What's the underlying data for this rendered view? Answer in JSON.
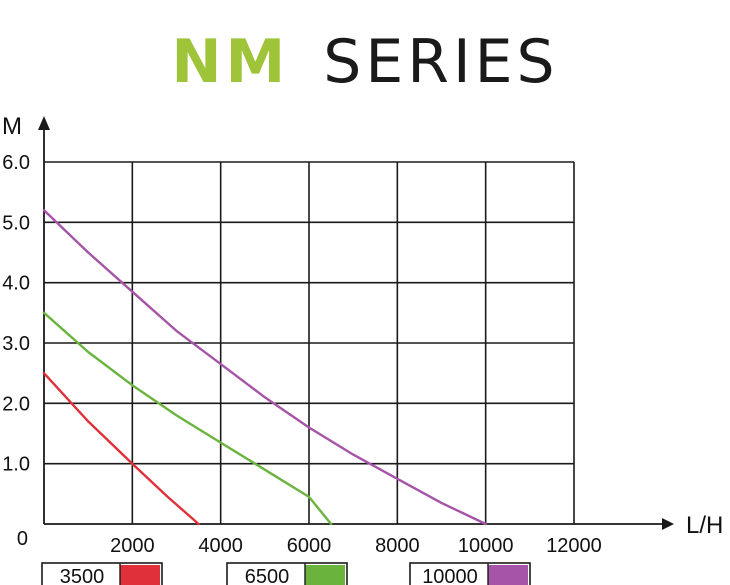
{
  "page": {
    "title_part1": "NM",
    "title_part2": "SERIES",
    "title_part1_color": "#9fc43a",
    "title_part2_color": "#1a1a1a"
  },
  "chart_data": {
    "type": "line",
    "xlabel": "L/H",
    "ylabel": "M",
    "xlim": [
      0,
      12000
    ],
    "ylim": [
      0,
      6.0
    ],
    "x_ticks": [
      "2000",
      "4000",
      "6000",
      "8000",
      "10000",
      "12000"
    ],
    "y_ticks": [
      "1.0",
      "2.0",
      "3.0",
      "4.0",
      "5.0",
      "6.0"
    ],
    "origin_label": "0",
    "grid": true,
    "legend_position": "bottom",
    "series": [
      {
        "name": "3500",
        "color": "#e0313a",
        "points": [
          [
            0,
            2.5
          ],
          [
            1000,
            1.7
          ],
          [
            2000,
            1.0
          ],
          [
            2800,
            0.45
          ],
          [
            3500,
            0
          ]
        ]
      },
      {
        "name": "6500",
        "color": "#6ab43e",
        "points": [
          [
            0,
            3.5
          ],
          [
            1000,
            2.85
          ],
          [
            2000,
            2.3
          ],
          [
            3000,
            1.8
          ],
          [
            4000,
            1.35
          ],
          [
            5000,
            0.9
          ],
          [
            6000,
            0.45
          ],
          [
            6500,
            0
          ]
        ]
      },
      {
        "name": "10000",
        "color": "#a554a8",
        "points": [
          [
            0,
            5.2
          ],
          [
            1000,
            4.5
          ],
          [
            2000,
            3.85
          ],
          [
            3000,
            3.2
          ],
          [
            4000,
            2.65
          ],
          [
            5000,
            2.1
          ],
          [
            6000,
            1.6
          ],
          [
            7000,
            1.15
          ],
          [
            8000,
            0.75
          ],
          [
            9000,
            0.35
          ],
          [
            10000,
            0
          ]
        ]
      }
    ]
  }
}
